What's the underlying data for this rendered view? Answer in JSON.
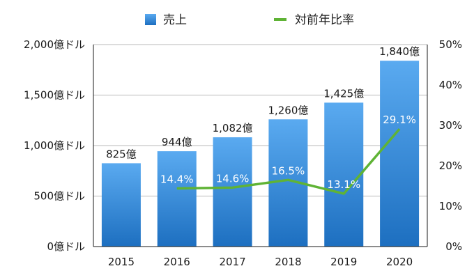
{
  "chart_data": {
    "type": "bar",
    "categories": [
      "2015",
      "2016",
      "2017",
      "2018",
      "2019",
      "2020"
    ],
    "series": [
      {
        "name": "売上",
        "type": "bar",
        "axis": "left",
        "values": [
          825,
          944,
          1082,
          1260,
          1425,
          1840
        ],
        "labels": [
          "825億",
          "944億",
          "1,082億",
          "1,260億",
          "1,425億",
          "1,840億"
        ],
        "color": "#2f86d6"
      },
      {
        "name": "対前年比率",
        "type": "line",
        "axis": "right",
        "x": [
          "2016",
          "2017",
          "2018",
          "2019",
          "2020"
        ],
        "values": [
          14.4,
          14.6,
          16.5,
          13.1,
          29.1
        ],
        "labels": [
          "14.4%",
          "14.6%",
          "16.5%",
          "13.1%",
          "29.1%"
        ],
        "color": "#5fb335"
      }
    ],
    "y_left": {
      "lim": [
        0,
        2000
      ],
      "ticks": [
        0,
        500,
        1000,
        1500,
        2000
      ],
      "tick_labels": [
        "0億ドル",
        "500億ドル",
        "1,000億ドル",
        "1,500億ドル",
        "2,000億ドル"
      ]
    },
    "y_right": {
      "lim": [
        0,
        50
      ],
      "ticks": [
        0,
        10,
        20,
        30,
        40,
        50
      ],
      "tick_labels": [
        "0%",
        "10%",
        "20%",
        "30%",
        "40%",
        "50%"
      ]
    },
    "grid": true,
    "legend": "top-center"
  }
}
